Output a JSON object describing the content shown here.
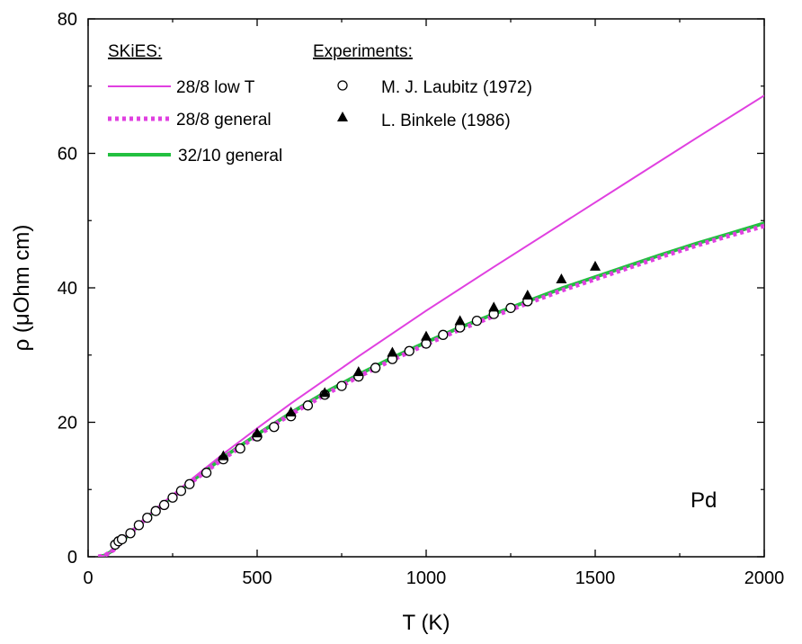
{
  "chart_data": {
    "type": "line",
    "xlabel": "T (K)",
    "ylabel": "ρ (μOhm cm)",
    "xlim": [
      0,
      2000
    ],
    "ylim": [
      0,
      80
    ],
    "x_ticks": [
      0,
      500,
      1000,
      1500,
      2000
    ],
    "y_ticks": [
      0,
      20,
      40,
      60,
      80
    ],
    "grid": false,
    "annotation": "Pd",
    "legend": {
      "theory_title": "SKiES:",
      "experiment_title": "Experiments:",
      "placement": "top-left"
    },
    "colors": {
      "low_t": "#e040e0",
      "general_28_8": "#e040e0",
      "general_32_10": "#22c040",
      "markers": "#000000"
    },
    "series": [
      {
        "name": "28/8 low T",
        "style": "solid",
        "x": [
          30,
          50,
          75,
          100,
          150,
          200,
          300,
          400,
          500,
          600,
          700,
          800,
          900,
          1000,
          1200,
          1400,
          1600,
          1800,
          2000
        ],
        "y": [
          0.0,
          0.2,
          1.0,
          2.4,
          4.8,
          7.1,
          11.3,
          15.3,
          19.1,
          22.8,
          26.3,
          29.8,
          33.2,
          36.6,
          43.1,
          49.5,
          55.9,
          62.3,
          68.6
        ]
      },
      {
        "name": "28/8 general",
        "style": "dotted",
        "x": [
          30,
          50,
          75,
          100,
          150,
          200,
          300,
          400,
          500,
          600,
          700,
          800,
          900,
          1000,
          1100,
          1200,
          1300,
          1400,
          1500,
          1600,
          1700,
          1800,
          1900,
          2000
        ],
        "y": [
          0.0,
          0.2,
          1.0,
          2.3,
          4.7,
          6.9,
          10.9,
          14.6,
          18.0,
          21.2,
          24.1,
          26.8,
          29.3,
          31.6,
          33.8,
          35.8,
          37.7,
          39.6,
          41.3,
          43.0,
          44.7,
          46.3,
          47.8,
          49.2
        ]
      },
      {
        "name": "32/10 general",
        "style": "solid-thick",
        "x": [
          30,
          50,
          75,
          100,
          150,
          200,
          300,
          400,
          500,
          600,
          700,
          800,
          900,
          1000,
          1100,
          1200,
          1300,
          1400,
          1500,
          1600,
          1700,
          1800,
          1900,
          2000
        ],
        "y": [
          0.0,
          0.2,
          1.0,
          2.3,
          4.7,
          7.0,
          11.0,
          14.8,
          18.2,
          21.4,
          24.4,
          27.1,
          29.6,
          31.9,
          34.1,
          36.1,
          38.0,
          39.9,
          41.6,
          43.3,
          45.0,
          46.6,
          48.1,
          49.6
        ]
      },
      {
        "name": "M. J. Laubitz (1972)",
        "style": "open-circle",
        "x": [
          80,
          90,
          100,
          125,
          150,
          175,
          200,
          225,
          250,
          275,
          300,
          350,
          400,
          450,
          500,
          550,
          600,
          650,
          700,
          750,
          800,
          850,
          900,
          950,
          1000,
          1050,
          1100,
          1150,
          1200,
          1250,
          1300
        ],
        "y": [
          1.8,
          2.3,
          2.6,
          3.5,
          4.7,
          5.8,
          6.8,
          7.7,
          8.8,
          9.8,
          10.8,
          12.5,
          14.5,
          16.1,
          17.9,
          19.3,
          20.9,
          22.5,
          24.1,
          25.4,
          26.8,
          28.1,
          29.4,
          30.6,
          31.7,
          33.0,
          34.1,
          35.1,
          36.1,
          37.0,
          38.0
        ]
      },
      {
        "name": "L. Binkele (1986)",
        "style": "filled-triangle",
        "x": [
          400,
          500,
          600,
          700,
          800,
          900,
          1000,
          1100,
          1200,
          1300,
          1400,
          1500
        ],
        "y": [
          14.9,
          18.3,
          21.4,
          24.3,
          27.4,
          30.3,
          32.7,
          35.0,
          37.0,
          38.8,
          41.2,
          43.1
        ]
      }
    ]
  }
}
